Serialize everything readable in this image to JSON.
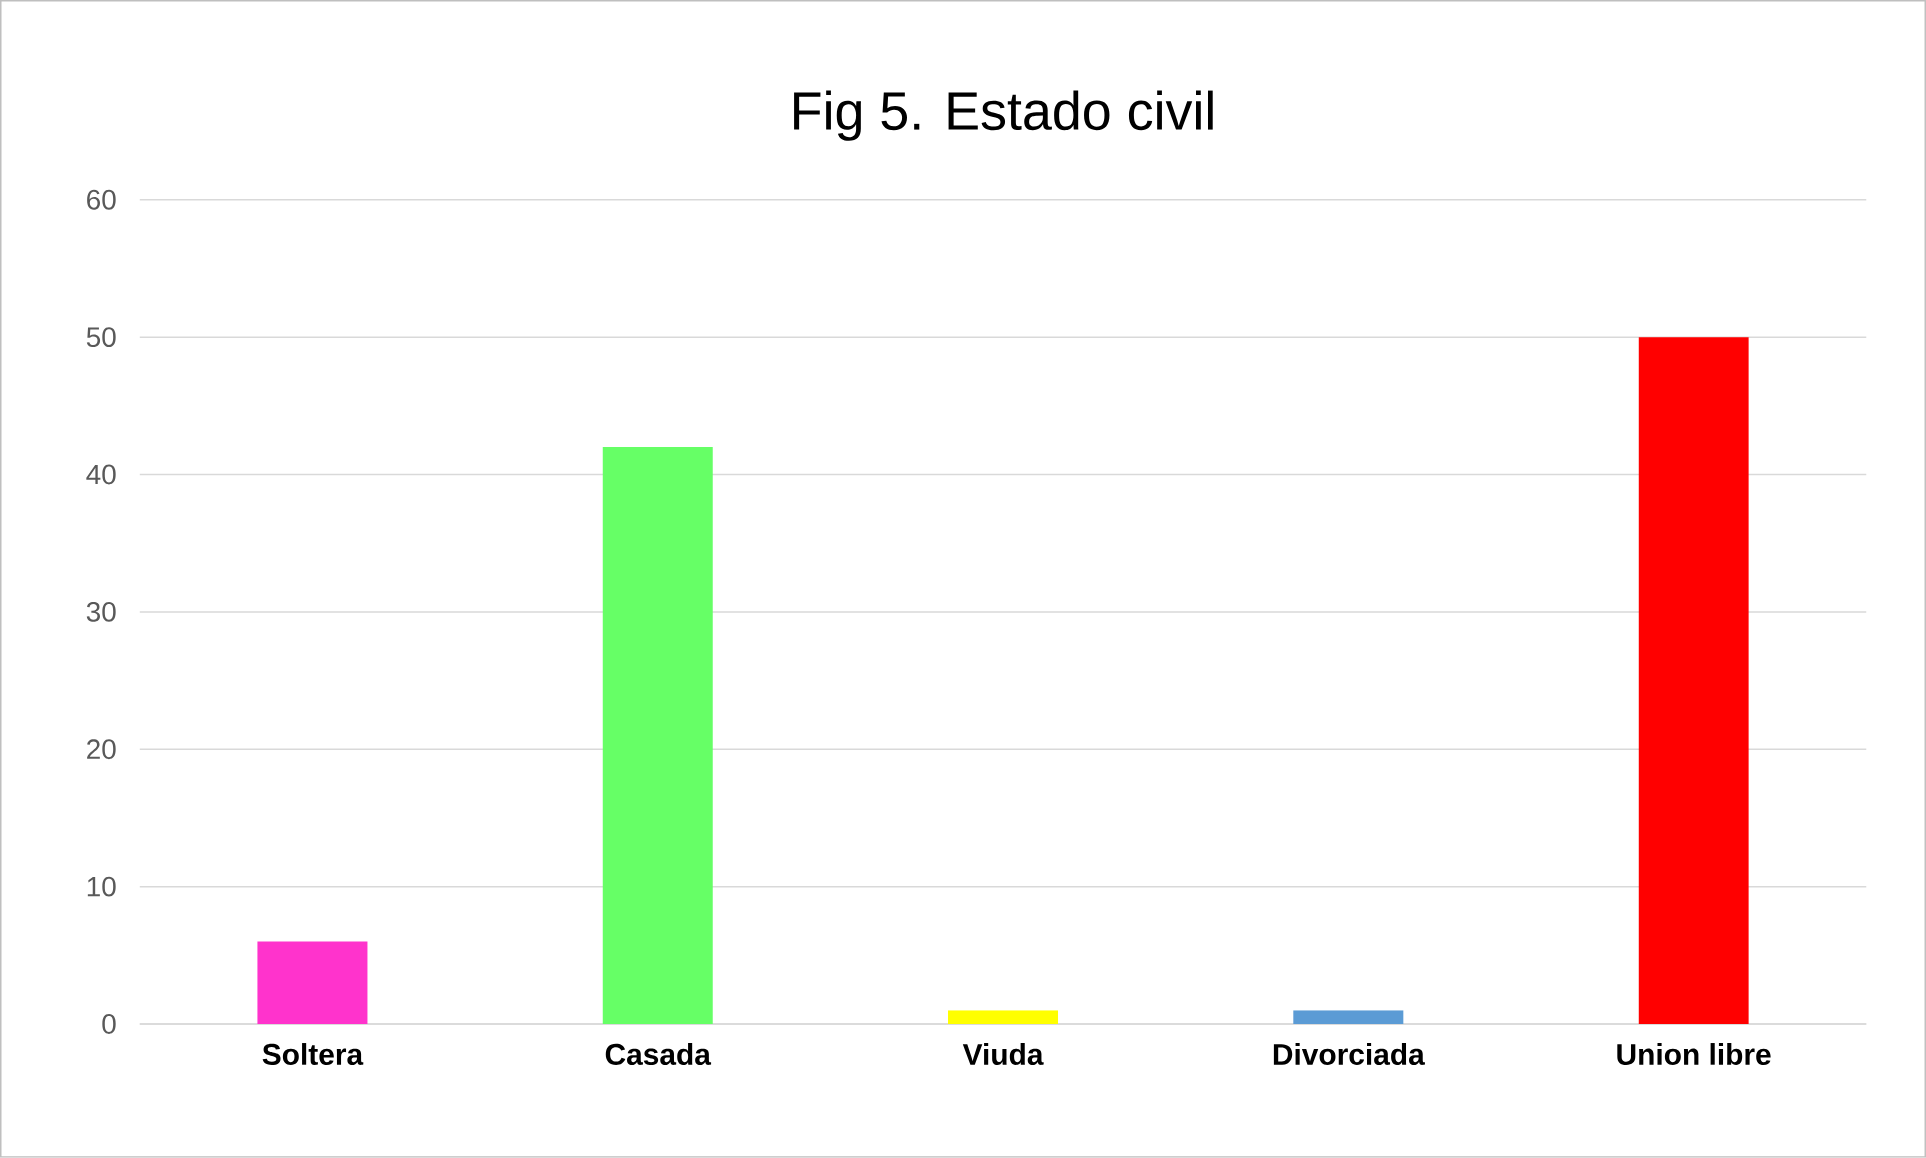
{
  "chart_data": {
    "type": "bar",
    "title": "Fig 5. Estado civil",
    "categories": [
      "Soltera",
      "Casada",
      "Viuda",
      "Divorciada",
      "Union libre"
    ],
    "values": [
      6,
      42,
      1,
      1,
      50
    ],
    "colors": [
      "#ff33cc",
      "#66ff66",
      "#ffff00",
      "#5b9bd5",
      "#ff0000"
    ],
    "ylim": [
      0,
      60
    ],
    "yticks": [
      0,
      10,
      20,
      30,
      40,
      50,
      60
    ],
    "grid": "y"
  }
}
